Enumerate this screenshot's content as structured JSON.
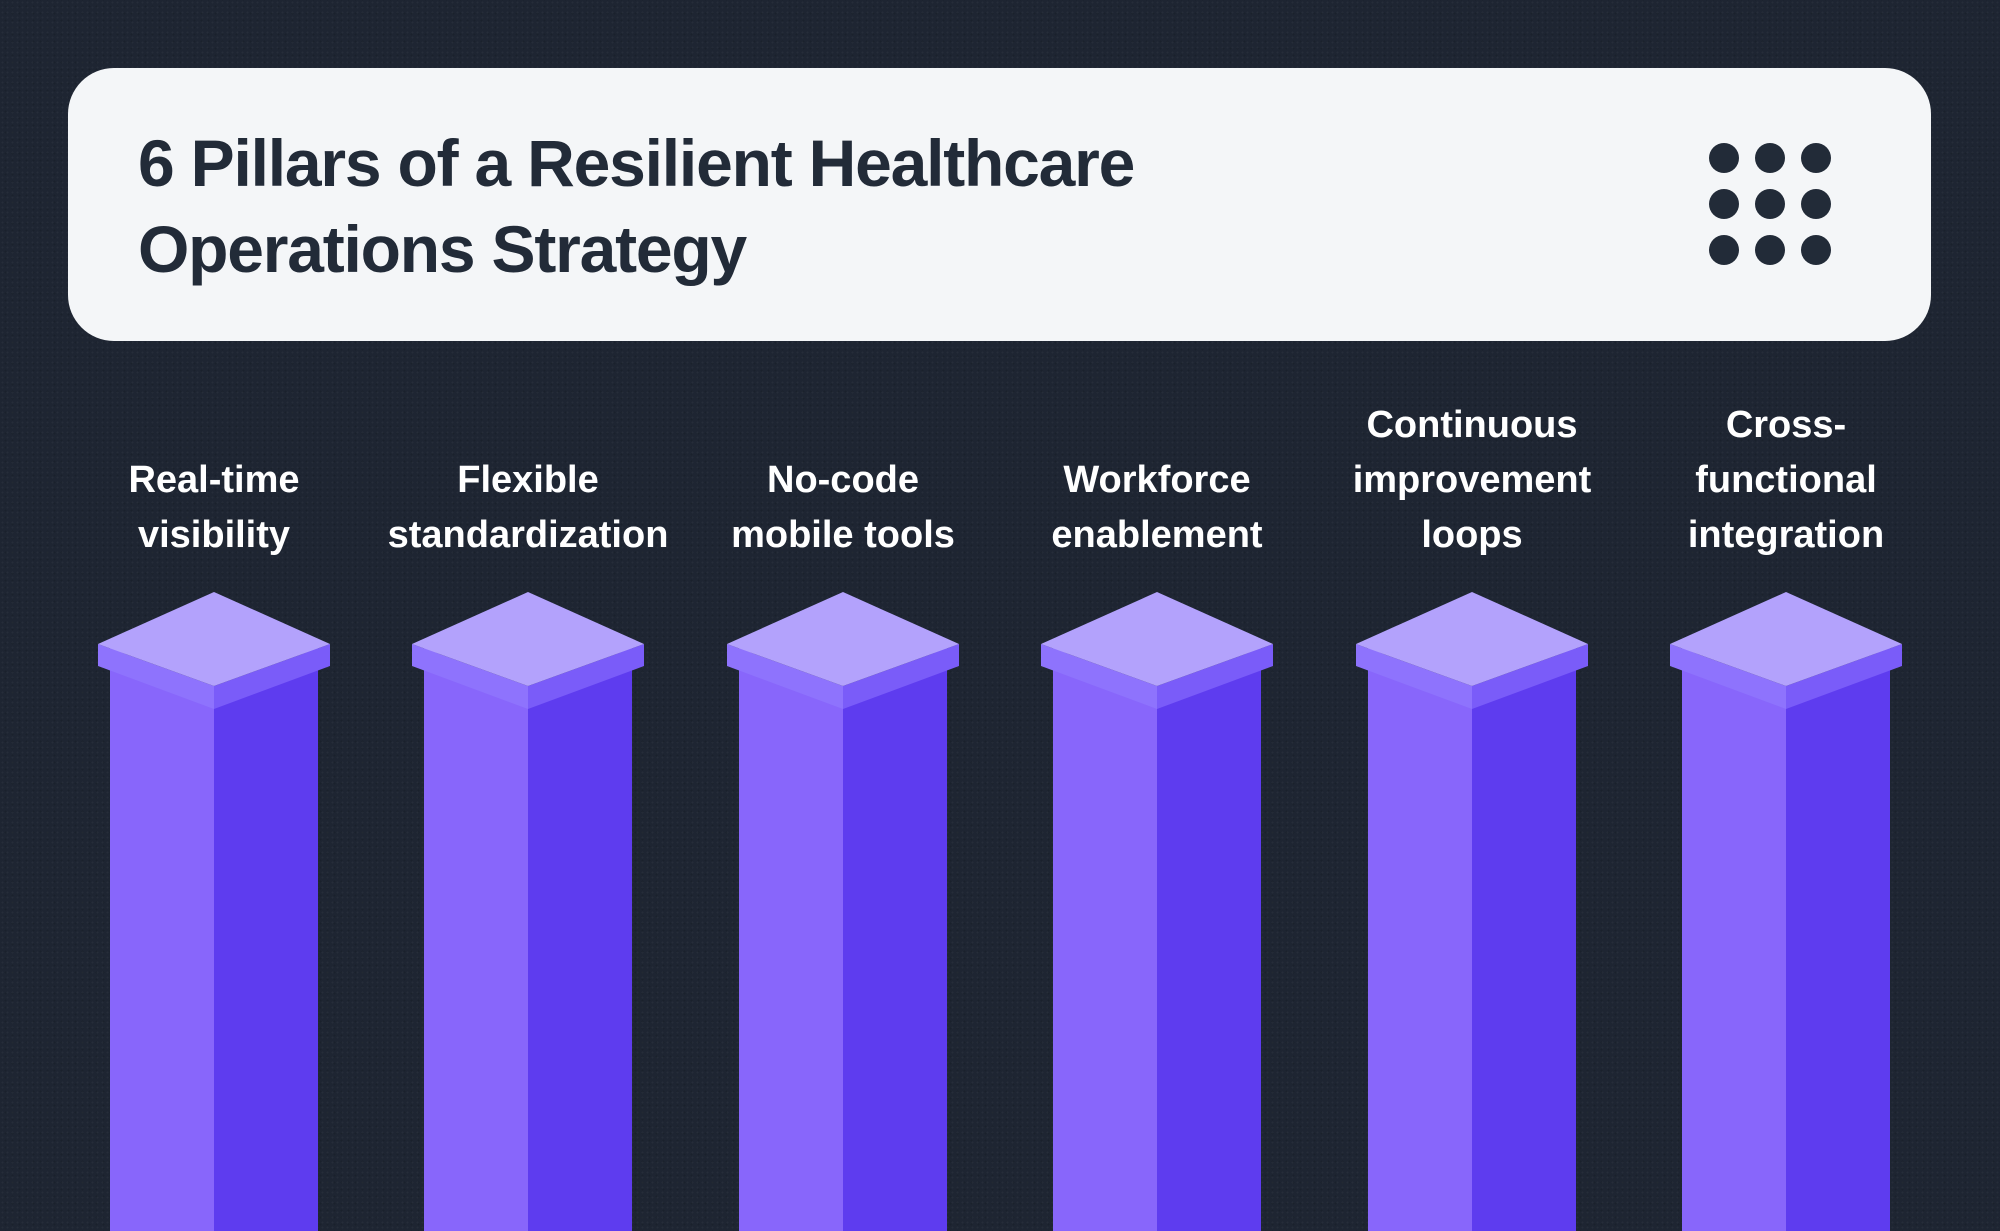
{
  "title": "6 Pillars of a Resilient Healthcare\nOperations Strategy",
  "menu_icon": "dots-grid-icon",
  "colors": {
    "background": "#1e2532",
    "card": "#f4f6f8",
    "text_dark": "#222b38",
    "pillar_top": "#b3a2fc",
    "pillar_rim_left": "#8e73fd",
    "pillar_rim_right": "#7a5cf9",
    "pillar_left": "#8866fb",
    "pillar_right": "#5e3cef"
  },
  "pillars": [
    {
      "label": "Real-time\nvisibility"
    },
    {
      "label": "Flexible\nstandardization"
    },
    {
      "label": "No-code\nmobile tools"
    },
    {
      "label": "Workforce\nenablement"
    },
    {
      "label": "Continuous\nimprovement\nloops"
    },
    {
      "label": "Cross-\nfunctional\nintegration"
    }
  ]
}
